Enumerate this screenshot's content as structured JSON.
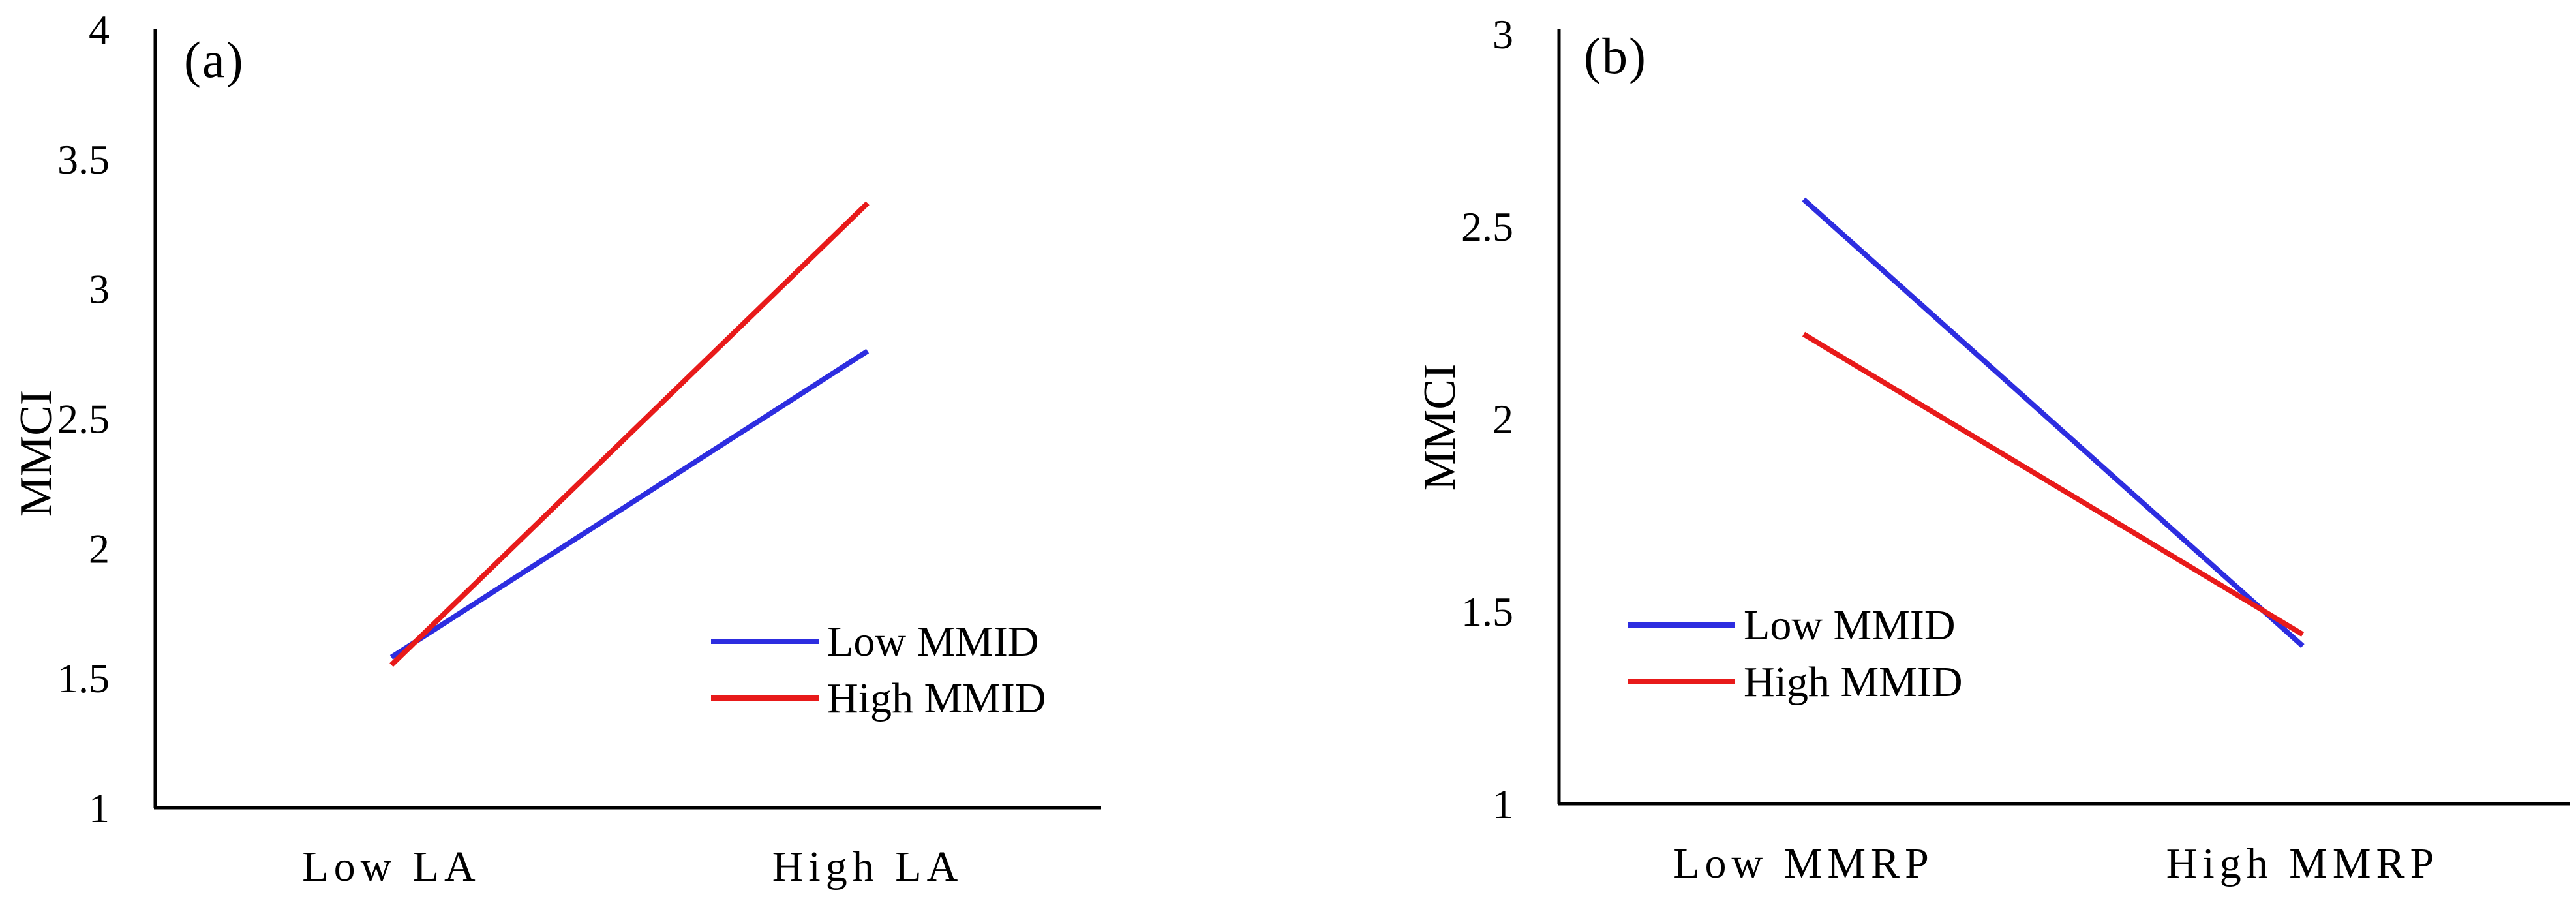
{
  "chart_data": [
    {
      "type": "line",
      "panel_label": "(a)",
      "ylabel": "MMCI",
      "categories": [
        "Low LA",
        "High LA"
      ],
      "yticks": [
        "1",
        "1.5",
        "2",
        "2.5",
        "3",
        "3.5",
        "4"
      ],
      "ylim": [
        1,
        4
      ],
      "series": [
        {
          "name": "Low MMID",
          "color": "#2d2de0",
          "values": [
            1.58,
            2.76
          ]
        },
        {
          "name": "High MMID",
          "color": "#e81a1a",
          "values": [
            1.55,
            3.33
          ]
        }
      ],
      "legend_position": "lower-right"
    },
    {
      "type": "line",
      "panel_label": "(b)",
      "ylabel": "MMCI",
      "categories": [
        "Low MMRP",
        "High MMRP"
      ],
      "yticks": [
        "1",
        "1.5",
        "2",
        "2.5",
        "3"
      ],
      "ylim": [
        1,
        3
      ],
      "series": [
        {
          "name": "Low MMID",
          "color": "#2d2de0",
          "values": [
            2.57,
            1.41
          ]
        },
        {
          "name": "High MMID",
          "color": "#e81a1a",
          "values": [
            2.22,
            1.44
          ]
        }
      ],
      "legend_position": "lower-left"
    }
  ]
}
